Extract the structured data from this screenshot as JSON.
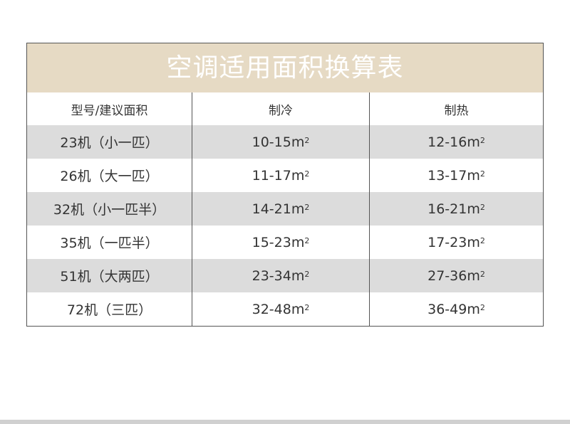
{
  "title": "空调适用面积换算表",
  "headers": [
    "型号/建议面积",
    "制冷",
    "制热"
  ],
  "unit": "m",
  "unit_sup": "2",
  "rows": [
    {
      "model": "23机（小一匹）",
      "cooling": "10-15",
      "heating": "12-16"
    },
    {
      "model": "26机（大一匹）",
      "cooling": "11-17",
      "heating": "13-17"
    },
    {
      "model": "32机（小一匹半）",
      "cooling": "14-21",
      "heating": "16-21"
    },
    {
      "model": "35机（一匹半）",
      "cooling": "15-23",
      "heating": "17-23"
    },
    {
      "model": "51机（大两匹）",
      "cooling": "23-34",
      "heating": "27-36"
    },
    {
      "model": "72机（三匹）",
      "cooling": "32-48",
      "heating": "36-49"
    }
  ],
  "colors": {
    "title_bg": "#e6dac4",
    "stripe": "#dcdcdc"
  }
}
